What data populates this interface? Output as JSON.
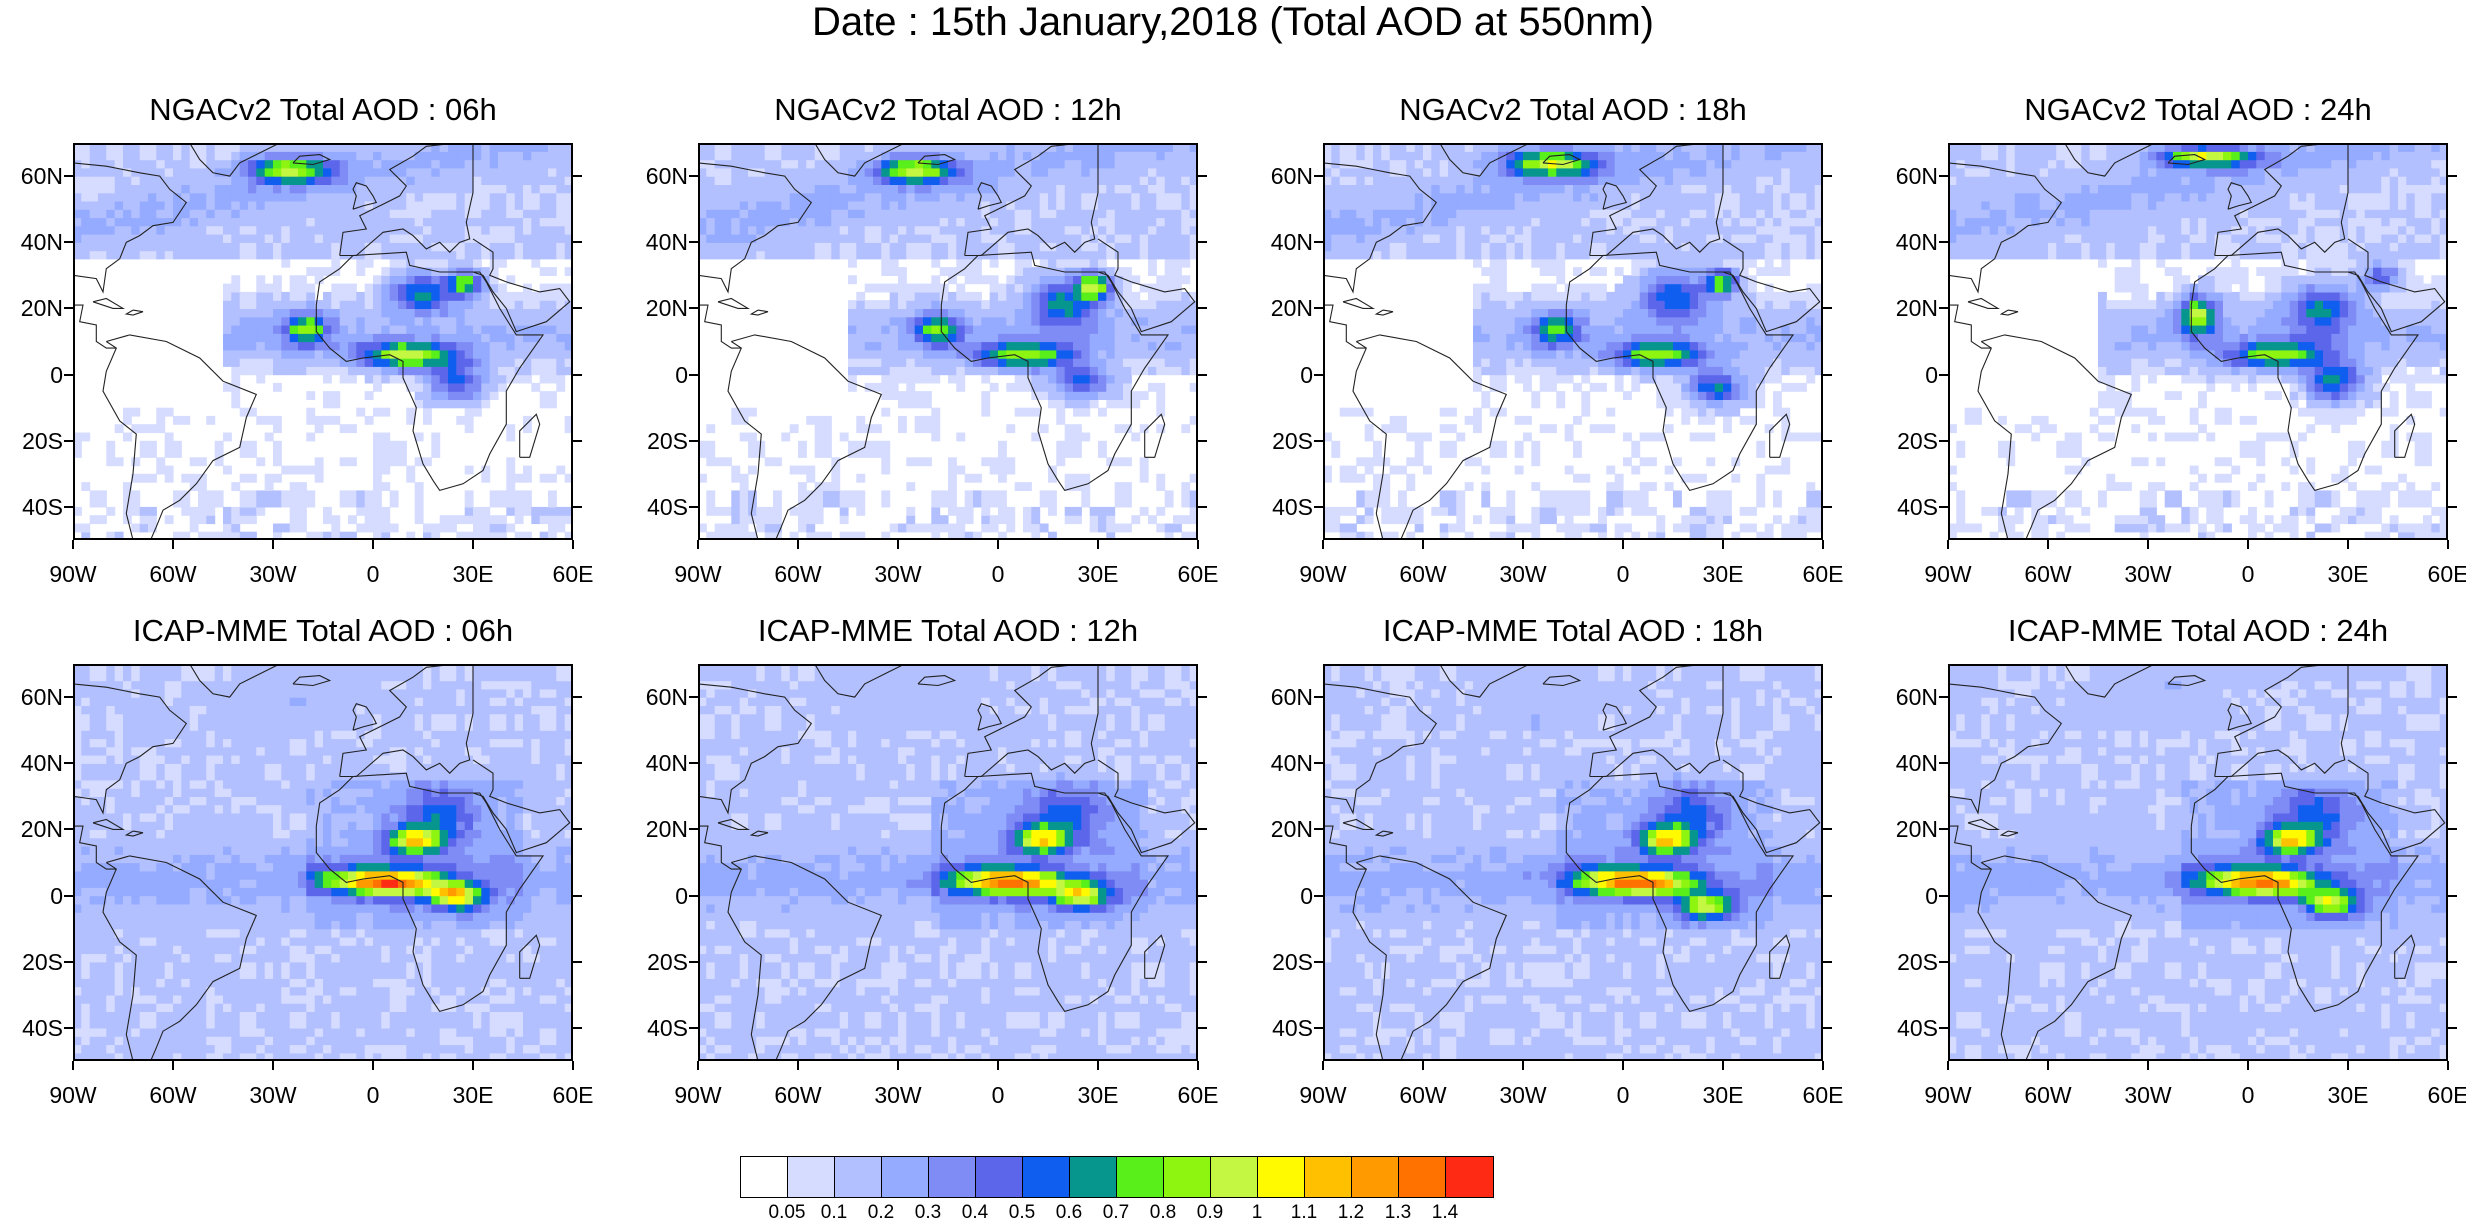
{
  "figure": {
    "title": "Date : 15th January,2018 (Total AOD at 550nm)"
  },
  "lat_labels": [
    "60N",
    "40N",
    "20N",
    "0",
    "20S",
    "40S"
  ],
  "lon_labels": [
    "90W",
    "60W",
    "30W",
    "0",
    "30E",
    "60E"
  ],
  "panels": [
    {
      "title": "NGACv2 Total AOD : 06h",
      "model": "NGACv2",
      "lead": "06h"
    },
    {
      "title": "NGACv2 Total AOD : 12h",
      "model": "NGACv2",
      "lead": "12h"
    },
    {
      "title": "NGACv2 Total AOD : 18h",
      "model": "NGACv2",
      "lead": "18h"
    },
    {
      "title": "NGACv2 Total AOD : 24h",
      "model": "NGACv2",
      "lead": "24h"
    },
    {
      "title": "ICAP-MME Total AOD : 06h",
      "model": "ICAP-MME",
      "lead": "06h"
    },
    {
      "title": "ICAP-MME Total AOD : 12h",
      "model": "ICAP-MME",
      "lead": "12h"
    },
    {
      "title": "ICAP-MME Total AOD : 18h",
      "model": "ICAP-MME",
      "lead": "18h"
    },
    {
      "title": "ICAP-MME Total AOD : 24h",
      "model": "ICAP-MME",
      "lead": "24h"
    }
  ],
  "colorbar": {
    "levels": [
      "0.05",
      "0.1",
      "0.2",
      "0.3",
      "0.4",
      "0.5",
      "0.6",
      "0.7",
      "0.8",
      "0.9",
      "1",
      "1.1",
      "1.2",
      "1.3",
      "1.4"
    ],
    "colors": [
      "#ffffff",
      "#d6dcff",
      "#b3c0ff",
      "#95abff",
      "#7f8cf5",
      "#5c66eb",
      "#0f5ef0",
      "#07968e",
      "#58ef1a",
      "#8ef511",
      "#c4f741",
      "#fffa00",
      "#ffc000",
      "#ff9a00",
      "#ff7200",
      "#ff2a14"
    ]
  }
}
